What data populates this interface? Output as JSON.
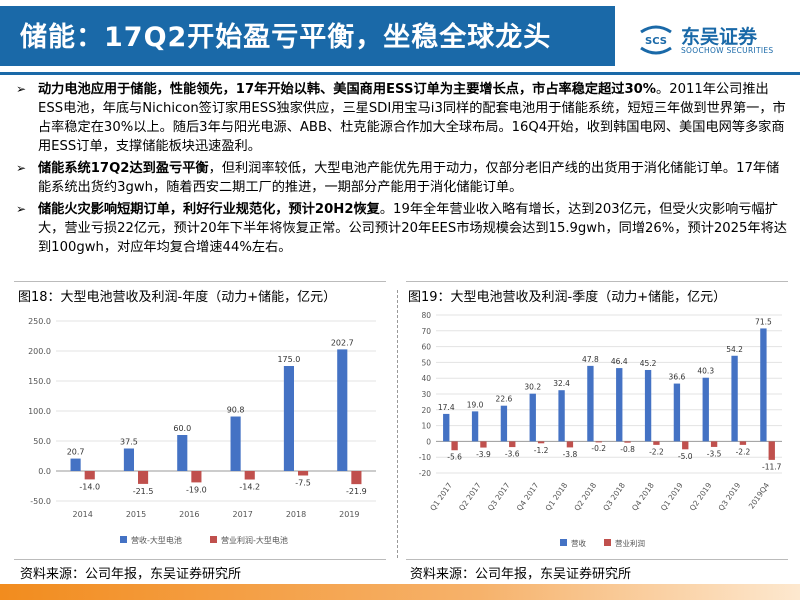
{
  "header": {
    "title": "储能：17Q2开始盈亏平衡，坐稳全球龙头",
    "logo_mark": "SCS",
    "logo_cn": "东吴证券",
    "logo_en": "SOOCHOW SECURITIES"
  },
  "bullets": [
    {
      "bold": "动力电池应用于储能，性能领先，17年开始以韩、美国商用ESS订单为主要增长点，市占率稳定超过30%",
      "text": "。2011年公司推出ESS电池，年底与Nichicon签订家用ESS独家供应，三星SDI用宝马i3同样的配套电池用于储能系统，短短三年做到世界第一，市占率稳定在30%以上。随后3年与阳光电源、ABB、杜克能源合作加大全球布局。16Q4开始，收到韩国电网、美国电网等多家商用ESS订单，支撑储能板块迅速盈利。"
    },
    {
      "bold": "储能系统17Q2达到盈亏平衡",
      "text": "，但利润率较低，大型电池产能优先用于动力，仅部分老旧产线的出货用于消化储能订单。17年储能系统出货约3gwh，随着西安二期工厂的推进，一期部分产能用于消化储能订单。"
    },
    {
      "bold": "储能火灾影响短期订单，利好行业规范化，预计20H2恢复",
      "text": "。19年全年营业收入略有增长，达到203亿元，但受火灾影响亏幅扩大，营业亏损22亿元，预计20年下半年将恢复正常。公司预计20年EES市场规模会达到15.9gwh，同增26%，预计2025年将达到100gwh，对应年均复合增速44%左右。"
    }
  ],
  "bullet_mark": "➢",
  "charts_text": {
    "left_title": "图18：大型电池营收及利润-年度（动力+储能，亿元）",
    "right_title": "图19：大型电池营收及利润-季度（动力+储能，亿元）",
    "left_source": "资料来源：公司年报，东吴证券研究所",
    "right_source": "资料来源：公司年报，东吴证券研究所"
  },
  "chart_data": [
    {
      "type": "bar",
      "title": "图18：大型电池营收及利润-年度（动力+储能，亿元）",
      "categories": [
        "2014",
        "2015",
        "2016",
        "2017",
        "2018",
        "2019"
      ],
      "series": [
        {
          "name": "营收-大型电池",
          "color": "#4472c4",
          "values": [
            20.7,
            37.5,
            60.0,
            90.8,
            175.0,
            202.7
          ]
        },
        {
          "name": "营业利润-大型电池",
          "color": "#c0504d",
          "values": [
            -14.0,
            -21.5,
            -19.0,
            -14.2,
            -7.5,
            -21.9
          ]
        }
      ],
      "ylim": [
        -50,
        250
      ],
      "yticks": [
        -50.0,
        0.0,
        50.0,
        100.0,
        150.0,
        200.0,
        250.0
      ],
      "ytick_labels": [
        "-50.0",
        "0.0",
        "50.0",
        "100.0",
        "150.0",
        "200.0",
        "250.0"
      ],
      "value_labels": {
        "营收-大型电池": [
          "20.7",
          "37.5",
          "60.0",
          "90.8",
          "175.0",
          "202.7"
        ],
        "营业利润-大型电池": [
          "-14.0",
          "-21.5",
          "-19.0",
          "-14.2",
          "-7.5",
          "-21.9"
        ]
      },
      "grid": true,
      "legend": "bottom"
    },
    {
      "type": "bar",
      "title": "图19：大型电池营收及利润-季度（动力+储能，亿元）",
      "categories": [
        "Q1 2017",
        "Q2 2017",
        "Q3 2017",
        "Q4 2017",
        "Q1 2018",
        "Q2 2018",
        "Q3 2018",
        "Q4 2018",
        "Q1 2019",
        "Q2 2019",
        "Q3 2019",
        "2019Q4"
      ],
      "series": [
        {
          "name": "营收",
          "color": "#4472c4",
          "values": [
            17.4,
            19.0,
            22.6,
            30.2,
            32.4,
            47.8,
            46.4,
            45.2,
            36.6,
            40.3,
            54.2,
            71.5
          ]
        },
        {
          "name": "营业利润",
          "color": "#c0504d",
          "values": [
            -5.6,
            -3.9,
            -3.6,
            -1.2,
            -3.8,
            -0.2,
            -0.8,
            -2.2,
            -5.0,
            -3.5,
            -2.2,
            -11.7
          ]
        }
      ],
      "ylim": [
        -20,
        80
      ],
      "yticks": [
        -20,
        -10,
        0,
        10,
        20,
        30,
        40,
        50,
        60,
        70,
        80
      ],
      "ytick_labels": [
        "-20",
        "-10",
        "0",
        "10",
        "20",
        "30",
        "40",
        "50",
        "60",
        "70",
        "80"
      ],
      "value_labels": {
        "营收": [
          "17.4",
          "19.0",
          "22.6",
          "30.2",
          "32.4",
          "47.8",
          "46.4",
          "45.2",
          "36.6",
          "40.3",
          "54.2",
          "71.5"
        ],
        "营业利润": [
          "-5.6",
          "-3.9",
          "-3.6",
          "-1.2",
          "-3.8",
          "-0.2",
          "-0.8",
          "-2.2",
          "-5.0",
          "-3.5",
          "-2.2",
          "-11.7"
        ]
      },
      "grid": true,
      "legend": "bottom"
    }
  ]
}
